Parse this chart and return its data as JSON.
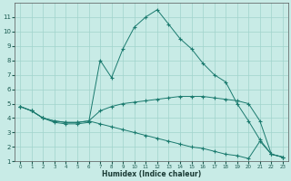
{
  "xlabel": "Humidex (Indice chaleur)",
  "xlim": [
    -0.5,
    23.5
  ],
  "ylim": [
    1,
    12
  ],
  "xticks": [
    0,
    1,
    2,
    3,
    4,
    5,
    6,
    7,
    8,
    9,
    10,
    11,
    12,
    13,
    14,
    15,
    16,
    17,
    18,
    19,
    20,
    21,
    22,
    23
  ],
  "yticks": [
    1,
    2,
    3,
    4,
    5,
    6,
    7,
    8,
    9,
    10,
    11
  ],
  "bg_color": "#c8ebe6",
  "line_color": "#1a7a6e",
  "grid_color": "#a0d4cc",
  "line1_x": [
    0,
    1,
    2,
    3,
    4,
    5,
    6,
    7,
    8,
    9,
    10,
    11,
    12,
    13,
    14,
    15,
    16,
    17,
    18,
    19,
    20,
    21,
    22,
    23
  ],
  "line1_y": [
    4.8,
    4.5,
    4.0,
    3.7,
    3.6,
    3.6,
    3.7,
    8.0,
    6.8,
    8.8,
    10.3,
    11.0,
    11.5,
    10.5,
    9.5,
    8.8,
    7.8,
    7.0,
    6.5,
    5.0,
    3.8,
    2.5,
    1.5,
    1.3
  ],
  "line2_x": [
    0,
    1,
    2,
    3,
    4,
    5,
    6,
    7,
    8,
    9,
    10,
    11,
    12,
    13,
    14,
    15,
    16,
    17,
    18,
    19,
    20,
    21,
    22,
    23
  ],
  "line2_y": [
    4.8,
    4.5,
    4.0,
    3.8,
    3.7,
    3.7,
    3.8,
    4.5,
    4.8,
    5.0,
    5.1,
    5.2,
    5.3,
    5.4,
    5.5,
    5.5,
    5.5,
    5.4,
    5.3,
    5.2,
    5.0,
    3.8,
    1.5,
    1.3
  ],
  "line3_x": [
    0,
    1,
    2,
    3,
    4,
    5,
    6,
    7,
    8,
    9,
    10,
    11,
    12,
    13,
    14,
    15,
    16,
    17,
    18,
    19,
    20,
    21,
    22,
    23
  ],
  "line3_y": [
    4.8,
    4.5,
    4.0,
    3.8,
    3.7,
    3.7,
    3.8,
    3.6,
    3.4,
    3.2,
    3.0,
    2.8,
    2.6,
    2.4,
    2.2,
    2.0,
    1.9,
    1.7,
    1.5,
    1.4,
    1.2,
    2.4,
    1.5,
    1.3
  ]
}
